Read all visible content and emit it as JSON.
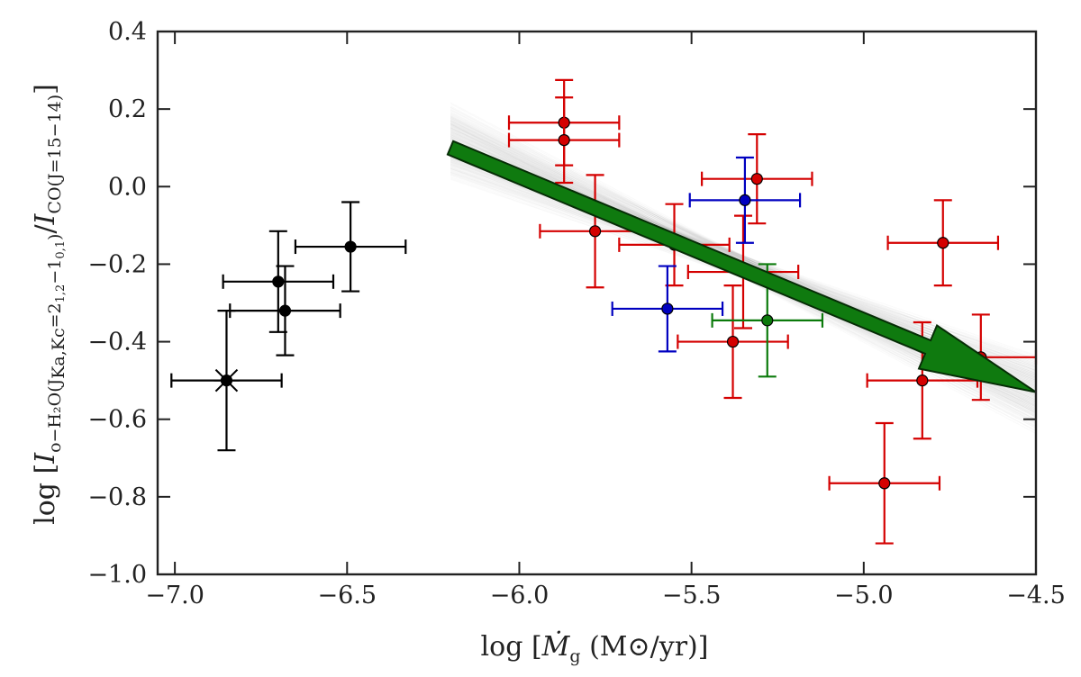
{
  "chart_data": {
    "type": "scatter",
    "xlim": [
      -7.05,
      -4.5
    ],
    "ylim": [
      -1.0,
      0.4
    ],
    "x_ticks": [
      -7.0,
      -6.5,
      -6.0,
      -5.5,
      -5.0,
      -4.5
    ],
    "x_tick_labels": [
      "−7.0",
      "−6.5",
      "−6.0",
      "−5.5",
      "−5.0",
      "−4.5"
    ],
    "y_ticks": [
      0.4,
      0.2,
      0.0,
      -0.2,
      -0.4,
      -0.6,
      -0.8,
      -1.0
    ],
    "y_tick_labels": [
      "0.4",
      "0.2",
      "0.0",
      "−0.2",
      "−0.4",
      "−0.6",
      "−0.8",
      "−1.0"
    ],
    "xlabel": {
      "main": "log [",
      "sym": "Ṁ",
      "sub": "g",
      "rest": " (M⊙/yr)]"
    },
    "ylabel": {
      "p1": "log [",
      "p2": "I",
      "p3": "o−H₂O(J",
      "p4": "Ka,Kc",
      "p5": "=2",
      "p6": "1,2",
      "p7": "−1",
      "p8": "0,1",
      "p9": ")",
      "p10": "/",
      "p11": "I",
      "p12": "CO(J=15−14)",
      "p13": "]"
    },
    "colors": {
      "red": "#d40000",
      "blue": "#0000c0",
      "green": "#0b7a0b",
      "black": "#000000",
      "arrow": "#0f7a0f"
    },
    "fit_band": {
      "x_range": [
        -6.2,
        -4.5
      ],
      "line": {
        "slope": -0.38,
        "intercept": -2.24
      },
      "slope_spread": 0.09
    },
    "arrow": {
      "x0": -6.2,
      "y0": 0.1,
      "x1": -4.5,
      "y1": -0.53
    },
    "series": [
      {
        "color": "red",
        "points": [
          {
            "x": -5.87,
            "y": 0.165,
            "xerr": 0.16,
            "yerr": 0.11
          },
          {
            "x": -5.87,
            "y": 0.12,
            "xerr": 0.16,
            "yerr": 0.11
          },
          {
            "x": -5.31,
            "y": 0.02,
            "xerr": 0.16,
            "yerr": 0.115
          },
          {
            "x": -5.78,
            "y": -0.115,
            "xerr": 0.16,
            "yerr": 0.145
          },
          {
            "x": -5.55,
            "y": -0.15,
            "xerr": 0.16,
            "yerr": 0.105
          },
          {
            "x": -5.35,
            "y": -0.22,
            "xerr": 0.16,
            "yerr": 0.145
          },
          {
            "x": -4.77,
            "y": -0.145,
            "xerr": 0.16,
            "yerr": 0.11
          },
          {
            "x": -5.38,
            "y": -0.4,
            "xerr": 0.16,
            "yerr": 0.145
          },
          {
            "x": -4.66,
            "y": -0.44,
            "xerr": 0.16,
            "yerr": 0.11
          },
          {
            "x": -4.83,
            "y": -0.5,
            "xerr": 0.16,
            "yerr": 0.15
          },
          {
            "x": -4.94,
            "y": -0.765,
            "xerr": 0.16,
            "yerr": 0.155
          }
        ]
      },
      {
        "color": "blue",
        "points": [
          {
            "x": -5.345,
            "y": -0.035,
            "xerr": 0.16,
            "yerr": 0.11
          },
          {
            "x": -5.57,
            "y": -0.315,
            "xerr": 0.16,
            "yerr": 0.11
          }
        ]
      },
      {
        "color": "green",
        "points": [
          {
            "x": -5.28,
            "y": -0.345,
            "xerr": 0.16,
            "yerr": 0.145
          }
        ]
      },
      {
        "color": "black",
        "points": [
          {
            "x": -6.49,
            "y": -0.155,
            "xerr": 0.16,
            "yerr": 0.115
          },
          {
            "x": -6.7,
            "y": -0.245,
            "xerr": 0.16,
            "yerr": 0.13
          },
          {
            "x": -6.68,
            "y": -0.32,
            "xerr": 0.16,
            "yerr": 0.115
          },
          {
            "x": -6.85,
            "y": -0.5,
            "xerr": 0.16,
            "yerr": 0.18,
            "marker": "star"
          }
        ]
      }
    ]
  }
}
